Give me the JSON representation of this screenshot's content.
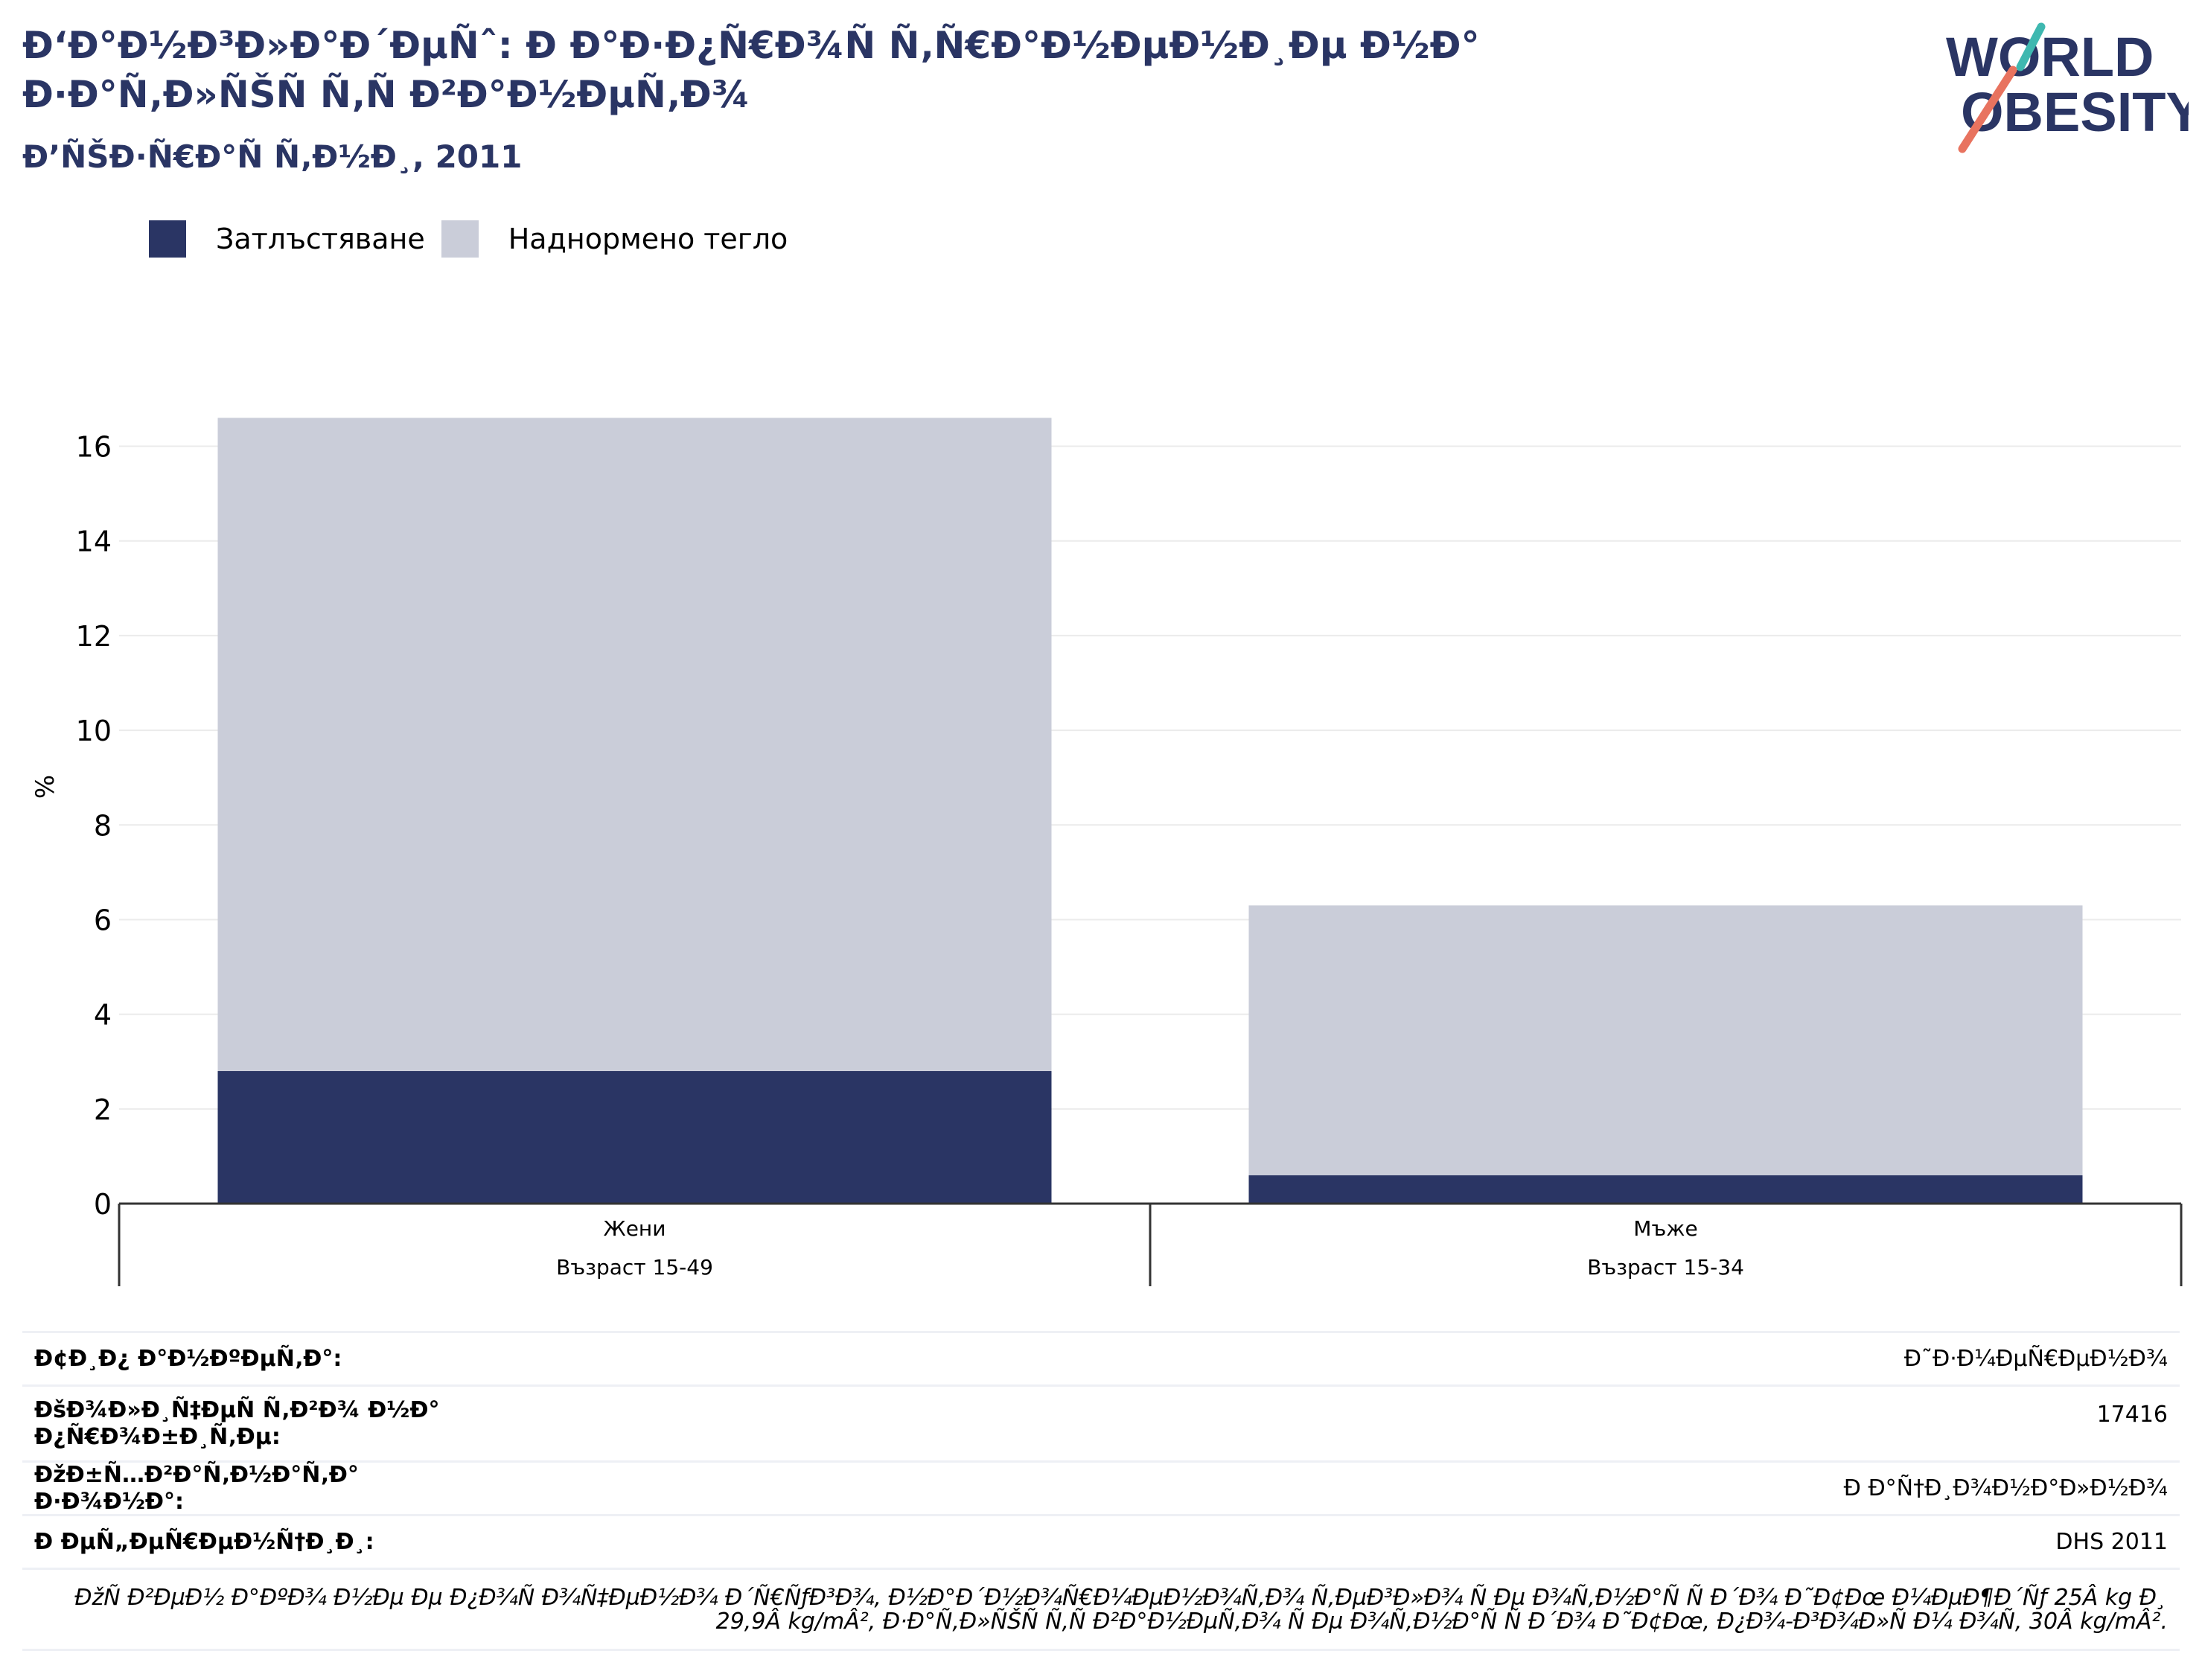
{
  "title": "Ð‘Ð°Ð½Ð³Ð»Ð°Ð´ÐµÑˆ: Ð Ð°Ð·Ð¿Ñ€Ð¾Ñ Ñ‚Ñ€Ð°Ð½ÐµÐ½Ð¸Ðµ Ð½Ð° Ð·Ð°Ñ‚Ð»ÑŠÑ Ñ‚Ñ Ð²Ð°Ð½ÐµÑ‚Ð¾",
  "subtitle": "Ð’ÑŠÐ·Ñ€Ð°Ñ Ñ‚Ð½Ð¸, 2011",
  "logo": {
    "line1": "WORLD",
    "line2": "OBESITY",
    "accent_teal": "#3fb8b0",
    "accent_coral": "#e8735f"
  },
  "colors": {
    "obesity": "#2a3564",
    "overweight": "#cacdd9",
    "title": "#2a3564",
    "grid": "#ebebeb",
    "axis": "#333333"
  },
  "chart_data": {
    "type": "bar",
    "stacked": true,
    "categories": [
      "Жени",
      "Мъже"
    ],
    "category_sublabels": [
      "Възраст 15-49",
      "Възраст 15-34"
    ],
    "series": [
      {
        "name": "Затлъстяване",
        "values": [
          2.8,
          0.6
        ]
      },
      {
        "name": "Наднормено тегло",
        "values": [
          13.8,
          5.7
        ]
      }
    ],
    "ylabel": "%",
    "ylim": [
      0,
      16.7
    ],
    "yticks": [
      0,
      2,
      4,
      6,
      8,
      10,
      12,
      14,
      16
    ],
    "grid": true,
    "legend": "top-left"
  },
  "info": {
    "rows": [
      {
        "label": "Ð¢Ð¸Ð¿ Ð°Ð½ÐºÐµÑ‚Ð°:",
        "value": "Ð˜Ð·Ð¼ÐµÑ€ÐµÐ½Ð¾"
      },
      {
        "label": "ÐšÐ¾Ð»Ð¸Ñ‡ÐµÑ Ñ‚Ð²Ð¾ Ð½Ð° Ð¿Ñ€Ð¾Ð±Ð¸Ñ‚Ðµ:",
        "value": "17416"
      },
      {
        "label": "ÐžÐ±Ñ…Ð²Ð°Ñ‚Ð½Ð°Ñ‚Ð° Ð·Ð¾Ð½Ð°:",
        "value": "Ð Ð°Ñ†Ð¸Ð¾Ð½Ð°Ð»Ð½Ð¾"
      },
      {
        "label": "Ð ÐµÑ„ÐµÑ€ÐµÐ½Ñ†Ð¸Ð¸:",
        "value": "DHS 2011"
      }
    ],
    "note": "ÐžÑ Ð²ÐµÐ½ Ð°ÐºÐ¾ Ð½Ðµ Ðµ Ð¿Ð¾Ñ Ð¾Ñ‡ÐµÐ½Ð¾ Ð´Ñ€ÑƒÐ³Ð¾, Ð½Ð°Ð´Ð½Ð¾Ñ€Ð¼ÐµÐ½Ð¾Ñ‚Ð¾ Ñ‚ÐµÐ³Ð»Ð¾ Ñ Ðµ Ð¾Ñ‚Ð½Ð°Ñ Ñ Ð´Ð¾ Ð˜Ð¢Ðœ Ð¼ÐµÐ¶Ð´Ñƒ 25Â kg Ð¸ 29,9Â kg/mÂ², Ð·Ð°Ñ‚Ð»ÑŠÑ Ñ‚Ñ Ð²Ð°Ð½ÐµÑ‚Ð¾ Ñ Ðµ Ð¾Ñ‚Ð½Ð°Ñ Ñ  Ð´Ð¾ Ð˜Ð¢Ðœ, Ð¿Ð¾-Ð³Ð¾Ð»Ñ Ð¼ Ð¾Ñ‚ 30Â kg/mÂ²."
  }
}
